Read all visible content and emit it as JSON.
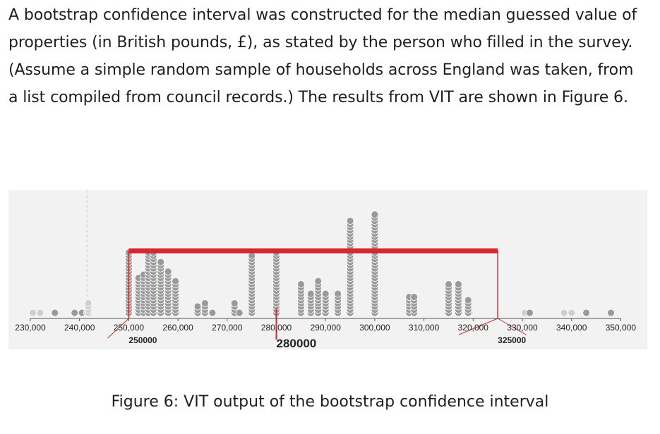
{
  "paragraph": "A bootstrap confidence interval was constructed for the median guessed value of properties (in British pounds, £), as stated by the person who filled in the survey. (Assume a simple random sample of households across England was taken, from a list compiled from council records.) The results from VIT are shown in Figure 6.",
  "caption": "Figure 6: VIT output of the bootstrap confidence interval",
  "colors": {
    "interval": "#d9262f",
    "dot_fill": "#9a9a9a",
    "dot_faded": "#cfcfcf",
    "panel": "#f2f2f2"
  },
  "chart_data": {
    "type": "scatter",
    "subtype": "bootstrap-dot-plot",
    "xlim": [
      230000,
      350000
    ],
    "tick_labels": [
      "230,000",
      "240,000",
      "250,000",
      "260,000",
      "270,000",
      "280,000",
      "290,000",
      "300,000",
      "310,000",
      "320,000",
      "330,000",
      "340,000",
      "350,000"
    ],
    "ticks": [
      230000,
      240000,
      250000,
      260000,
      270000,
      280000,
      290000,
      300000,
      310000,
      320000,
      330000,
      340000,
      350000
    ],
    "interval": {
      "lower": 250000,
      "upper": 325000,
      "point_estimate": 280000
    },
    "interval_labels": {
      "lower": "250000",
      "upper": "325000",
      "point_estimate": "280000"
    },
    "stacks": [
      {
        "x": 230500,
        "count": 1,
        "faded": true
      },
      {
        "x": 232000,
        "count": 1,
        "faded": true
      },
      {
        "x": 235000,
        "count": 1
      },
      {
        "x": 239000,
        "count": 1
      },
      {
        "x": 240500,
        "count": 1
      },
      {
        "x": 241500,
        "count": 1,
        "faded": true
      },
      {
        "x": 241800,
        "count": 4,
        "faded": true
      },
      {
        "x": 250000,
        "count": 20
      },
      {
        "x": 252000,
        "count": 12
      },
      {
        "x": 253000,
        "count": 13
      },
      {
        "x": 254000,
        "count": 20
      },
      {
        "x": 255000,
        "count": 20
      },
      {
        "x": 256500,
        "count": 17
      },
      {
        "x": 258000,
        "count": 14
      },
      {
        "x": 259500,
        "count": 11
      },
      {
        "x": 264000,
        "count": 3
      },
      {
        "x": 265500,
        "count": 4
      },
      {
        "x": 267000,
        "count": 1
      },
      {
        "x": 271500,
        "count": 4
      },
      {
        "x": 272500,
        "count": 1
      },
      {
        "x": 275000,
        "count": 19
      },
      {
        "x": 280000,
        "count": 20
      },
      {
        "x": 285000,
        "count": 10
      },
      {
        "x": 287000,
        "count": 7
      },
      {
        "x": 288500,
        "count": 11
      },
      {
        "x": 290000,
        "count": 7
      },
      {
        "x": 292500,
        "count": 7
      },
      {
        "x": 295000,
        "count": 30
      },
      {
        "x": 300000,
        "count": 32
      },
      {
        "x": 307000,
        "count": 6
      },
      {
        "x": 308000,
        "count": 6
      },
      {
        "x": 315000,
        "count": 10
      },
      {
        "x": 317000,
        "count": 10
      },
      {
        "x": 319000,
        "count": 5
      },
      {
        "x": 330500,
        "count": 1,
        "faded": true
      },
      {
        "x": 331500,
        "count": 1
      },
      {
        "x": 338500,
        "count": 1,
        "faded": true
      },
      {
        "x": 340000,
        "count": 1,
        "faded": true
      },
      {
        "x": 343000,
        "count": 1
      },
      {
        "x": 348000,
        "count": 1
      }
    ]
  }
}
